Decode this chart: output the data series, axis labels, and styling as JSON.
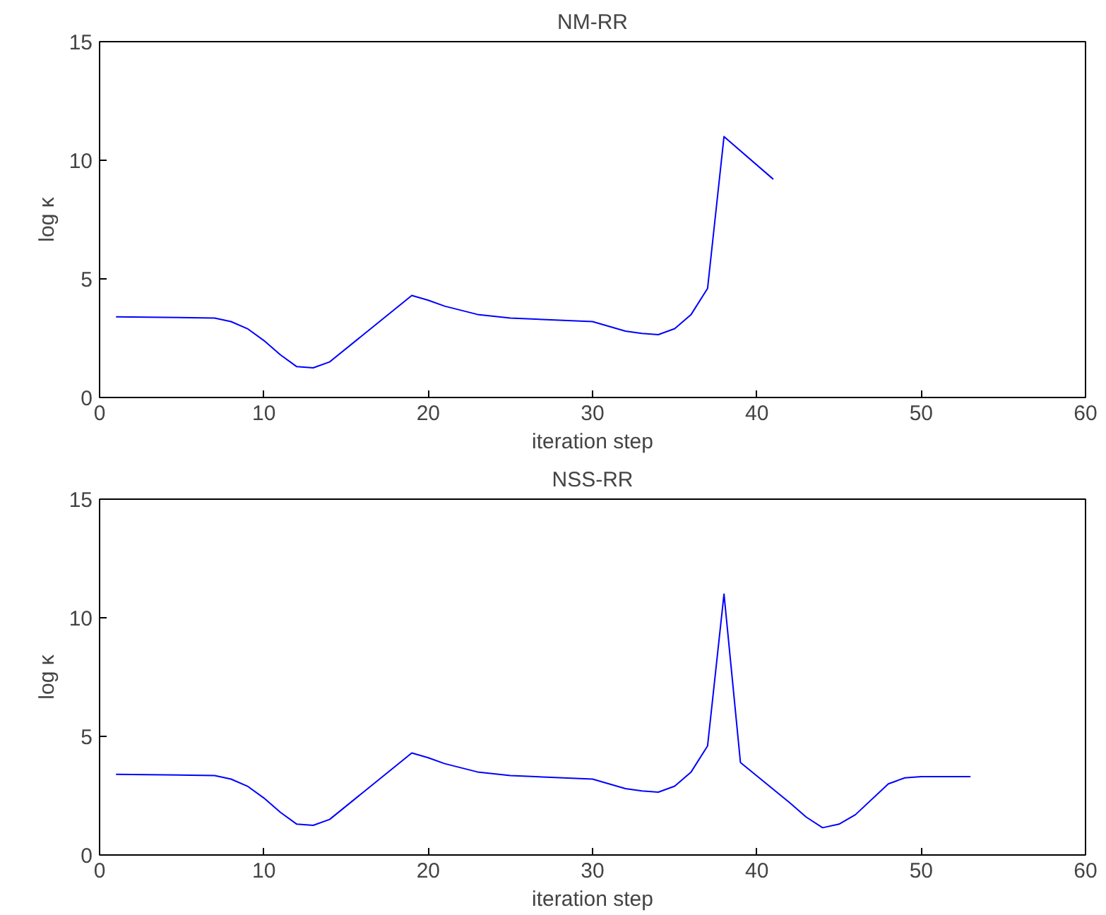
{
  "chart_data": [
    {
      "type": "line",
      "title": "NM-RR",
      "xlabel": "iteration step",
      "ylabel": "log κ",
      "xlim": [
        0,
        60
      ],
      "ylim": [
        0,
        15
      ],
      "xticks": [
        0,
        10,
        20,
        30,
        40,
        50,
        60
      ],
      "yticks": [
        0,
        5,
        10,
        15
      ],
      "series": [
        {
          "color": "#0000ff",
          "x": [
            1,
            7,
            8,
            9,
            10,
            11,
            12,
            13,
            14,
            19,
            20,
            21,
            23,
            25,
            30,
            31,
            32,
            33,
            34,
            35,
            36,
            37,
            38,
            41
          ],
          "values": [
            3.4,
            3.35,
            3.2,
            2.9,
            2.4,
            1.8,
            1.3,
            1.25,
            1.5,
            4.3,
            4.1,
            3.85,
            3.5,
            3.35,
            3.2,
            3.0,
            2.8,
            2.7,
            2.65,
            2.9,
            3.5,
            4.6,
            11.0,
            9.2
          ]
        }
      ]
    },
    {
      "type": "line",
      "title": "NSS-RR",
      "xlabel": "iteration step",
      "ylabel": "log κ",
      "xlim": [
        0,
        60
      ],
      "ylim": [
        0,
        15
      ],
      "xticks": [
        0,
        10,
        20,
        30,
        40,
        50,
        60
      ],
      "yticks": [
        0,
        5,
        10,
        15
      ],
      "series": [
        {
          "color": "#0000ff",
          "x": [
            1,
            7,
            8,
            9,
            10,
            11,
            12,
            13,
            14,
            19,
            20,
            21,
            23,
            25,
            30,
            31,
            32,
            33,
            34,
            35,
            36,
            37,
            38,
            39,
            42,
            43,
            44,
            45,
            46,
            48,
            49,
            50,
            53
          ],
          "values": [
            3.4,
            3.35,
            3.2,
            2.9,
            2.4,
            1.8,
            1.3,
            1.25,
            1.5,
            4.3,
            4.1,
            3.85,
            3.5,
            3.35,
            3.2,
            3.0,
            2.8,
            2.7,
            2.65,
            2.9,
            3.5,
            4.6,
            11.0,
            3.9,
            2.2,
            1.6,
            1.15,
            1.3,
            1.7,
            3.0,
            3.25,
            3.3,
            3.3
          ]
        }
      ]
    }
  ]
}
